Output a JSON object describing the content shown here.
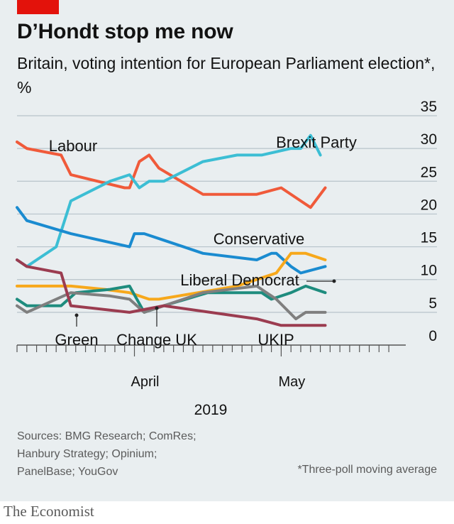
{
  "header": {
    "title": "D’Hondt stop me now",
    "subtitle": "Britain, voting intention for European Parliament election*, %"
  },
  "footer": {
    "sources": [
      "Sources: BMG Research; ComRes;",
      "Hanbury Strategy; Opinium;",
      "PanelBase; YouGov"
    ],
    "footnote": "*Three-poll moving average",
    "brand": "The Economist"
  },
  "colors": {
    "accent": "#e3120b",
    "background": "#e9eef0",
    "gridline": "#b7c3ca",
    "axis": "#555555",
    "text": "#121212"
  },
  "chart_data": {
    "type": "line",
    "title": "D’Hondt stop me now",
    "subtitle": "Britain, voting intention for European Parliament election*, %",
    "xlabel": "2019",
    "ylabel": "",
    "x_unit": "day",
    "x_tick_labels": [
      {
        "label": "April",
        "at": "2019-04-01"
      },
      {
        "label": "May",
        "at": "2019-05-01"
      }
    ],
    "xlim": [
      "2019-03-08",
      "2019-05-24"
    ],
    "ylim": [
      0,
      35
    ],
    "y_ticks": [
      0,
      5,
      10,
      15,
      20,
      25,
      30,
      35
    ],
    "y_axis_side": "right",
    "grid": true,
    "legend": "direct labels",
    "series": [
      {
        "name": "Labour",
        "color": "#f05a3a",
        "points": [
          [
            "2019-03-08",
            31
          ],
          [
            "2019-03-10",
            30
          ],
          [
            "2019-03-17",
            29
          ],
          [
            "2019-03-19",
            26
          ],
          [
            "2019-03-30",
            24
          ],
          [
            "2019-03-31",
            24
          ],
          [
            "2019-04-02",
            28
          ],
          [
            "2019-04-04",
            29
          ],
          [
            "2019-04-06",
            27
          ],
          [
            "2019-04-15",
            23
          ],
          [
            "2019-04-26",
            23
          ],
          [
            "2019-05-01",
            24
          ],
          [
            "2019-05-05",
            22
          ],
          [
            "2019-05-07",
            21
          ],
          [
            "2019-05-10",
            24
          ]
        ]
      },
      {
        "name": "Brexit Party",
        "color": "#3cbed4",
        "points": [
          [
            "2019-03-08",
            13
          ],
          [
            "2019-03-10",
            12
          ],
          [
            "2019-03-16",
            15
          ],
          [
            "2019-03-19",
            22
          ],
          [
            "2019-03-27",
            25
          ],
          [
            "2019-03-31",
            26
          ],
          [
            "2019-04-02",
            24
          ],
          [
            "2019-04-04",
            25
          ],
          [
            "2019-04-07",
            25
          ],
          [
            "2019-04-15",
            28
          ],
          [
            "2019-04-22",
            29
          ],
          [
            "2019-04-27",
            29
          ],
          [
            "2019-05-03",
            30
          ],
          [
            "2019-05-05",
            30
          ],
          [
            "2019-05-07",
            32
          ],
          [
            "2019-05-09",
            29
          ]
        ]
      },
      {
        "name": "Conservative",
        "color": "#1a8bd0",
        "points": [
          [
            "2019-03-08",
            21
          ],
          [
            "2019-03-10",
            19
          ],
          [
            "2019-03-19",
            17
          ],
          [
            "2019-03-31",
            15
          ],
          [
            "2019-04-01",
            17
          ],
          [
            "2019-04-03",
            17
          ],
          [
            "2019-04-07",
            16
          ],
          [
            "2019-04-15",
            14
          ],
          [
            "2019-04-26",
            13
          ],
          [
            "2019-04-29",
            14
          ],
          [
            "2019-04-30",
            14
          ],
          [
            "2019-05-03",
            12
          ],
          [
            "2019-05-05",
            11
          ],
          [
            "2019-05-10",
            12
          ]
        ]
      },
      {
        "name": "Liberal Democrat",
        "color": "#f7a81b",
        "points": [
          [
            "2019-03-08",
            9
          ],
          [
            "2019-03-19",
            9
          ],
          [
            "2019-03-26",
            8.5
          ],
          [
            "2019-03-31",
            8
          ],
          [
            "2019-04-04",
            7
          ],
          [
            "2019-04-06",
            7
          ],
          [
            "2019-04-14",
            8
          ],
          [
            "2019-04-18",
            8.5
          ],
          [
            "2019-04-22",
            9
          ],
          [
            "2019-04-30",
            11
          ],
          [
            "2019-05-03",
            14
          ],
          [
            "2019-05-06",
            14
          ],
          [
            "2019-05-10",
            13
          ]
        ]
      },
      {
        "name": "Green",
        "color": "#1e8c7e",
        "points": [
          [
            "2019-03-08",
            7
          ],
          [
            "2019-03-10",
            6
          ],
          [
            "2019-03-17",
            6
          ],
          [
            "2019-03-20",
            8
          ],
          [
            "2019-03-27",
            8.5
          ],
          [
            "2019-03-31",
            9
          ],
          [
            "2019-04-03",
            5
          ],
          [
            "2019-04-07",
            6
          ],
          [
            "2019-04-16",
            8
          ],
          [
            "2019-04-27",
            8
          ],
          [
            "2019-04-29",
            7
          ],
          [
            "2019-05-03",
            8
          ],
          [
            "2019-05-06",
            9
          ],
          [
            "2019-05-10",
            8
          ]
        ]
      },
      {
        "name": "Change UK",
        "color": "#7f7f7f",
        "points": [
          [
            "2019-03-08",
            6
          ],
          [
            "2019-03-10",
            5
          ],
          [
            "2019-03-19",
            8
          ],
          [
            "2019-03-27",
            7.5
          ],
          [
            "2019-03-31",
            7
          ],
          [
            "2019-04-03",
            5
          ],
          [
            "2019-04-15",
            8
          ],
          [
            "2019-04-26",
            9
          ],
          [
            "2019-04-30",
            7
          ],
          [
            "2019-05-04",
            4
          ],
          [
            "2019-05-06",
            5
          ],
          [
            "2019-05-10",
            5
          ]
        ]
      },
      {
        "name": "UKIP",
        "color": "#9b3c50",
        "points": [
          [
            "2019-03-08",
            13
          ],
          [
            "2019-03-10",
            12
          ],
          [
            "2019-03-17",
            11
          ],
          [
            "2019-03-19",
            6
          ],
          [
            "2019-03-31",
            5
          ],
          [
            "2019-04-07",
            6
          ],
          [
            "2019-04-26",
            4
          ],
          [
            "2019-05-01",
            3
          ],
          [
            "2019-05-10",
            3
          ]
        ]
      }
    ],
    "annotations": [
      {
        "text": "Labour",
        "series": "Labour"
      },
      {
        "text": "Brexit Party",
        "series": "Brexit Party"
      },
      {
        "text": "Conservative",
        "series": "Conservative"
      },
      {
        "text": "Liberal Democrat",
        "series": "Liberal Democrat"
      },
      {
        "text": "Green",
        "series": "Green"
      },
      {
        "text": "Change UK",
        "series": "Change UK"
      },
      {
        "text": "UKIP",
        "series": "UKIP"
      }
    ]
  }
}
